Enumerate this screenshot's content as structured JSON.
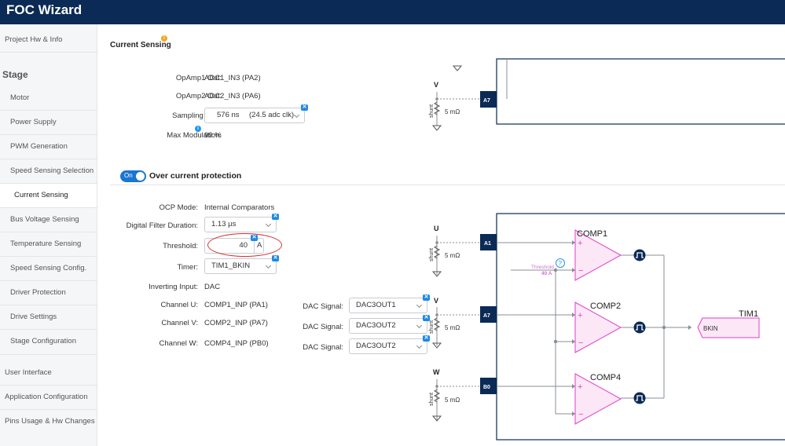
{
  "app": {
    "title": "FOC Wizard"
  },
  "sidebar": {
    "top_items": [
      {
        "label": "Project Hw & Info"
      }
    ],
    "section": "Stage",
    "stage_items": [
      {
        "label": "Motor"
      },
      {
        "label": "Power Supply"
      },
      {
        "label": "PWM Generation"
      },
      {
        "label": "Speed Sensing Selection"
      },
      {
        "label": "Current Sensing"
      },
      {
        "label": "Bus Voltage Sensing"
      },
      {
        "label": "Temperature Sensing"
      },
      {
        "label": "Speed Sensing Config."
      },
      {
        "label": "Driver Protection"
      },
      {
        "label": "Drive Settings"
      },
      {
        "label": "Stage Configuration"
      }
    ],
    "bottom_items": [
      {
        "label": "User Interface"
      },
      {
        "label": "Application Configuration"
      },
      {
        "label": "Pins Usage & Hw Changes"
      }
    ],
    "active": "Current Sensing"
  },
  "main": {
    "page_title": "Current Sensing",
    "page_title_badge": "!",
    "opamp1_label": "OpAmp1 Out:",
    "opamp1_value": "ADC1_IN3 (PA2)",
    "opamp2_label": "OpAmp2 Out:",
    "opamp2_value": "ADC2_IN3 (PA6)",
    "sampling_label": "Sampling time:",
    "sampling_value": "576 ns",
    "sampling_extra": "(24.5 adc clk)",
    "maxmod_label": "Max Modulation:",
    "maxmod_badge": "i",
    "maxmod_value": "99 %",
    "ocp_toggle_label": "On",
    "ocp_title": "Over current protection",
    "ocp_mode_label": "OCP Mode:",
    "ocp_mode_value": "Internal Comparators",
    "filter_label": "Digital Filter Duration:",
    "filter_value": "1.13 µs",
    "threshold_label": "Threshold:",
    "threshold_value": "40",
    "threshold_unit": "A",
    "timer_label": "Timer:",
    "timer_value": "TIM1_BKIN",
    "inverting_label": "Inverting Input:",
    "inverting_value": "DAC",
    "channels": [
      {
        "label": "Channel U:",
        "value": "COMP1_INP (PA1)"
      },
      {
        "label": "Channel V:",
        "value": "COMP2_INP (PA7)"
      },
      {
        "label": "Channel W:",
        "value": "COMP4_INP (PB0)"
      }
    ],
    "dac_signals": [
      {
        "label": "DAC Signal:",
        "value": "DAC3OUT1"
      },
      {
        "label": "DAC Signal:",
        "value": "DAC3OUT2"
      },
      {
        "label": "DAC Signal:",
        "value": "DAC3OUT2"
      }
    ]
  },
  "diagram": {
    "top": {
      "phase": "V",
      "pin": "A7",
      "shunt": "shunt",
      "res": "5 mΩ"
    },
    "phases": [
      {
        "phase": "U",
        "pin": "A1",
        "shunt": "shunt",
        "res": "5 mΩ"
      },
      {
        "phase": "V",
        "pin": "A7",
        "shunt": "shunt",
        "res": "5 mΩ"
      },
      {
        "phase": "W",
        "pin": "B0",
        "shunt": "shunt",
        "res": "5 mΩ"
      }
    ],
    "comparators": [
      "COMP1",
      "COMP2",
      "COMP4"
    ],
    "threshold_label": "Threshold",
    "threshold_value": "40 A",
    "timer_block": "TIM1",
    "timer_input": "BKIN",
    "colors": {
      "pin_box": "#0b2a55",
      "comparator": "#e040c8",
      "threshold": "#d070d0",
      "wire": "#8a8f96"
    }
  }
}
